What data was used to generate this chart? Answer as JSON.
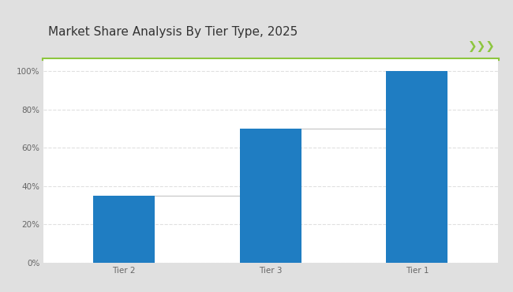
{
  "title": "Market Share Analysis By Tier Type, 2025",
  "categories": [
    "Tier 2",
    "Tier 3",
    "Tier 1"
  ],
  "values": [
    35,
    70,
    100
  ],
  "bar_color": "#1F7DC2",
  "connector_line_color": "#c8c8c8",
  "background_color": "#e0e0e0",
  "plot_bg_color": "#ffffff",
  "title_bg_color": "#ffffff",
  "title_color": "#333333",
  "title_fontsize": 11,
  "ylabel_ticks": [
    "0%",
    "20%",
    "40%",
    "60%",
    "80%",
    "100%"
  ],
  "ytick_values": [
    0,
    20,
    40,
    60,
    80,
    100
  ],
  "ylim": [
    0,
    106
  ],
  "green_line_color": "#8DC63F",
  "chevron_color": "#8DC63F",
  "tick_fontsize": 7.5,
  "grid_color": "#e0e0e0",
  "bar_width": 0.42
}
